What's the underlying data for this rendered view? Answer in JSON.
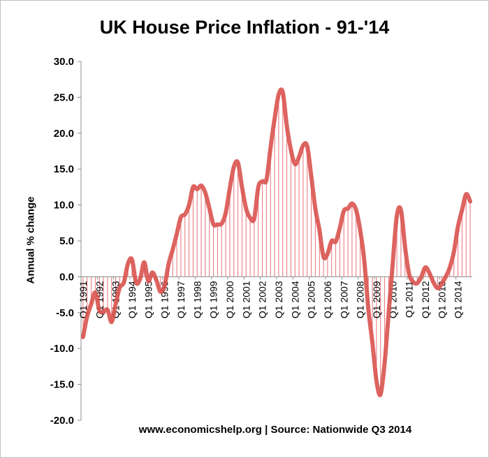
{
  "chart_data": {
    "type": "area",
    "title": "UK House Price Inflation - 91-'14",
    "xlabel": "",
    "ylabel": "Annual % change",
    "source_note": "www.economicshelp.org | Source: Nationwide Q3 2014",
    "ylim": [
      -20,
      30
    ],
    "y_ticks": [
      "30.0",
      "25.0",
      "20.0",
      "15.0",
      "10.0",
      "5.0",
      "0.0",
      "-5.0",
      "-10.0",
      "-15.0",
      "-20.0"
    ],
    "x_tick_labels": [
      "Q1 1991",
      "Q1 1992",
      "Q1 1993",
      "Q1 1994",
      "Q1 1995",
      "Q1 1996",
      "Q1 1997",
      "Q1 1998",
      "Q1 1999",
      "Q1 2000",
      "Q1 2001",
      "Q1 2002",
      "Q1 2003",
      "Q1 2004",
      "Q1 2005",
      "Q1 2006",
      "Q1 2007",
      "Q1 2008",
      "Q1 2009",
      "Q1 2010",
      "Q1 2011",
      "Q1 2012",
      "Q1 2013",
      "Q1 2014"
    ],
    "grid": false,
    "line_color": "#d9534f",
    "bar_color": "#e8727a",
    "series": [
      {
        "values": [
          -8.4,
          -5.5,
          -3.8,
          -2.2,
          -4.7,
          -4.9,
          -4.6,
          -6.3,
          -3.8,
          -1.5,
          -0.8,
          1.8,
          2.4,
          -0.8,
          -0.3,
          2.0,
          -0.6,
          0.6,
          -0.5,
          -2.1,
          -1.2,
          1.8,
          3.8,
          6.0,
          8.3,
          8.7,
          10.0,
          12.5,
          12.2,
          12.7,
          11.7,
          9.5,
          7.3,
          7.3,
          7.4,
          8.9,
          12.3,
          15.3,
          15.9,
          12.5,
          9.5,
          8.2,
          8.1,
          12.5,
          13.3,
          13.5,
          18.0,
          22.0,
          25.4,
          25.7,
          21.0,
          17.7,
          15.7,
          16.7,
          18.3,
          18.2,
          14.0,
          9.5,
          6.5,
          2.8,
          3.2,
          5.0,
          4.9,
          6.8,
          9.2,
          9.5,
          10.2,
          9.3,
          6.5,
          2.3,
          -4.5,
          -9.2,
          -14.5,
          -16.4,
          -12.0,
          -5.0,
          2.0,
          8.5,
          9.3,
          4.2,
          0.4,
          -0.7,
          -0.9,
          0.0,
          1.3,
          0.5,
          -0.8,
          -1.6,
          -1.0,
          0.0,
          1.3,
          3.5,
          7.0,
          9.3,
          11.5,
          10.5
        ]
      }
    ]
  }
}
